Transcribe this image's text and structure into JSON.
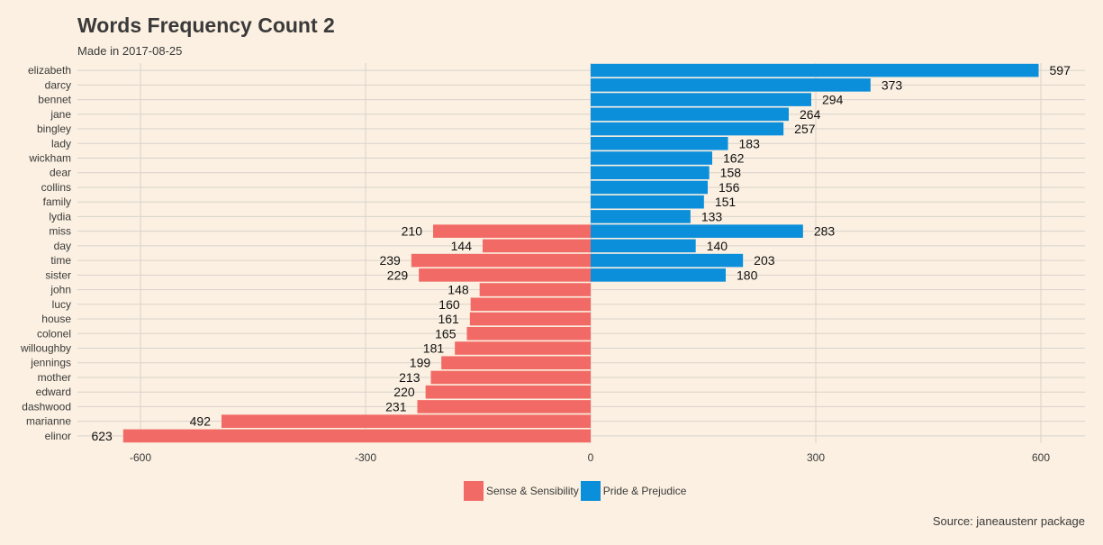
{
  "colors": {
    "background": "#FBF0E1",
    "grid": "#d9d3cc",
    "sense": "#F26A65",
    "pride": "#0B8FDB"
  },
  "chart_data": {
    "type": "bar",
    "orientation": "horizontal",
    "title": "Words Frequency Count 2",
    "subtitle": "Made in 2017-08-25",
    "caption": "Source: janeaustenr package",
    "xlim": [
      -700,
      650
    ],
    "xticks": [
      -600,
      -300,
      0,
      300,
      600
    ],
    "xtick_labels": [
      "-600",
      "-300",
      "0",
      "300",
      "600"
    ],
    "grid": true,
    "legend_position": "bottom",
    "categories": [
      "elizabeth",
      "darcy",
      "bennet",
      "jane",
      "bingley",
      "lady",
      "wickham",
      "dear",
      "collins",
      "family",
      "lydia",
      "miss",
      "day",
      "time",
      "sister",
      "john",
      "lucy",
      "house",
      "colonel",
      "willoughby",
      "jennings",
      "mother",
      "edward",
      "dashwood",
      "marianne",
      "elinor"
    ],
    "series": [
      {
        "name": "Sense & Sensibility",
        "values": [
          null,
          null,
          null,
          null,
          null,
          null,
          null,
          null,
          null,
          null,
          null,
          210,
          144,
          239,
          229,
          148,
          160,
          161,
          165,
          181,
          199,
          213,
          220,
          231,
          492,
          623
        ]
      },
      {
        "name": "Pride & Prejudice",
        "values": [
          597,
          373,
          294,
          264,
          257,
          183,
          162,
          158,
          156,
          151,
          133,
          283,
          140,
          203,
          180,
          null,
          null,
          null,
          null,
          null,
          null,
          null,
          null,
          null,
          null,
          null
        ]
      }
    ]
  }
}
